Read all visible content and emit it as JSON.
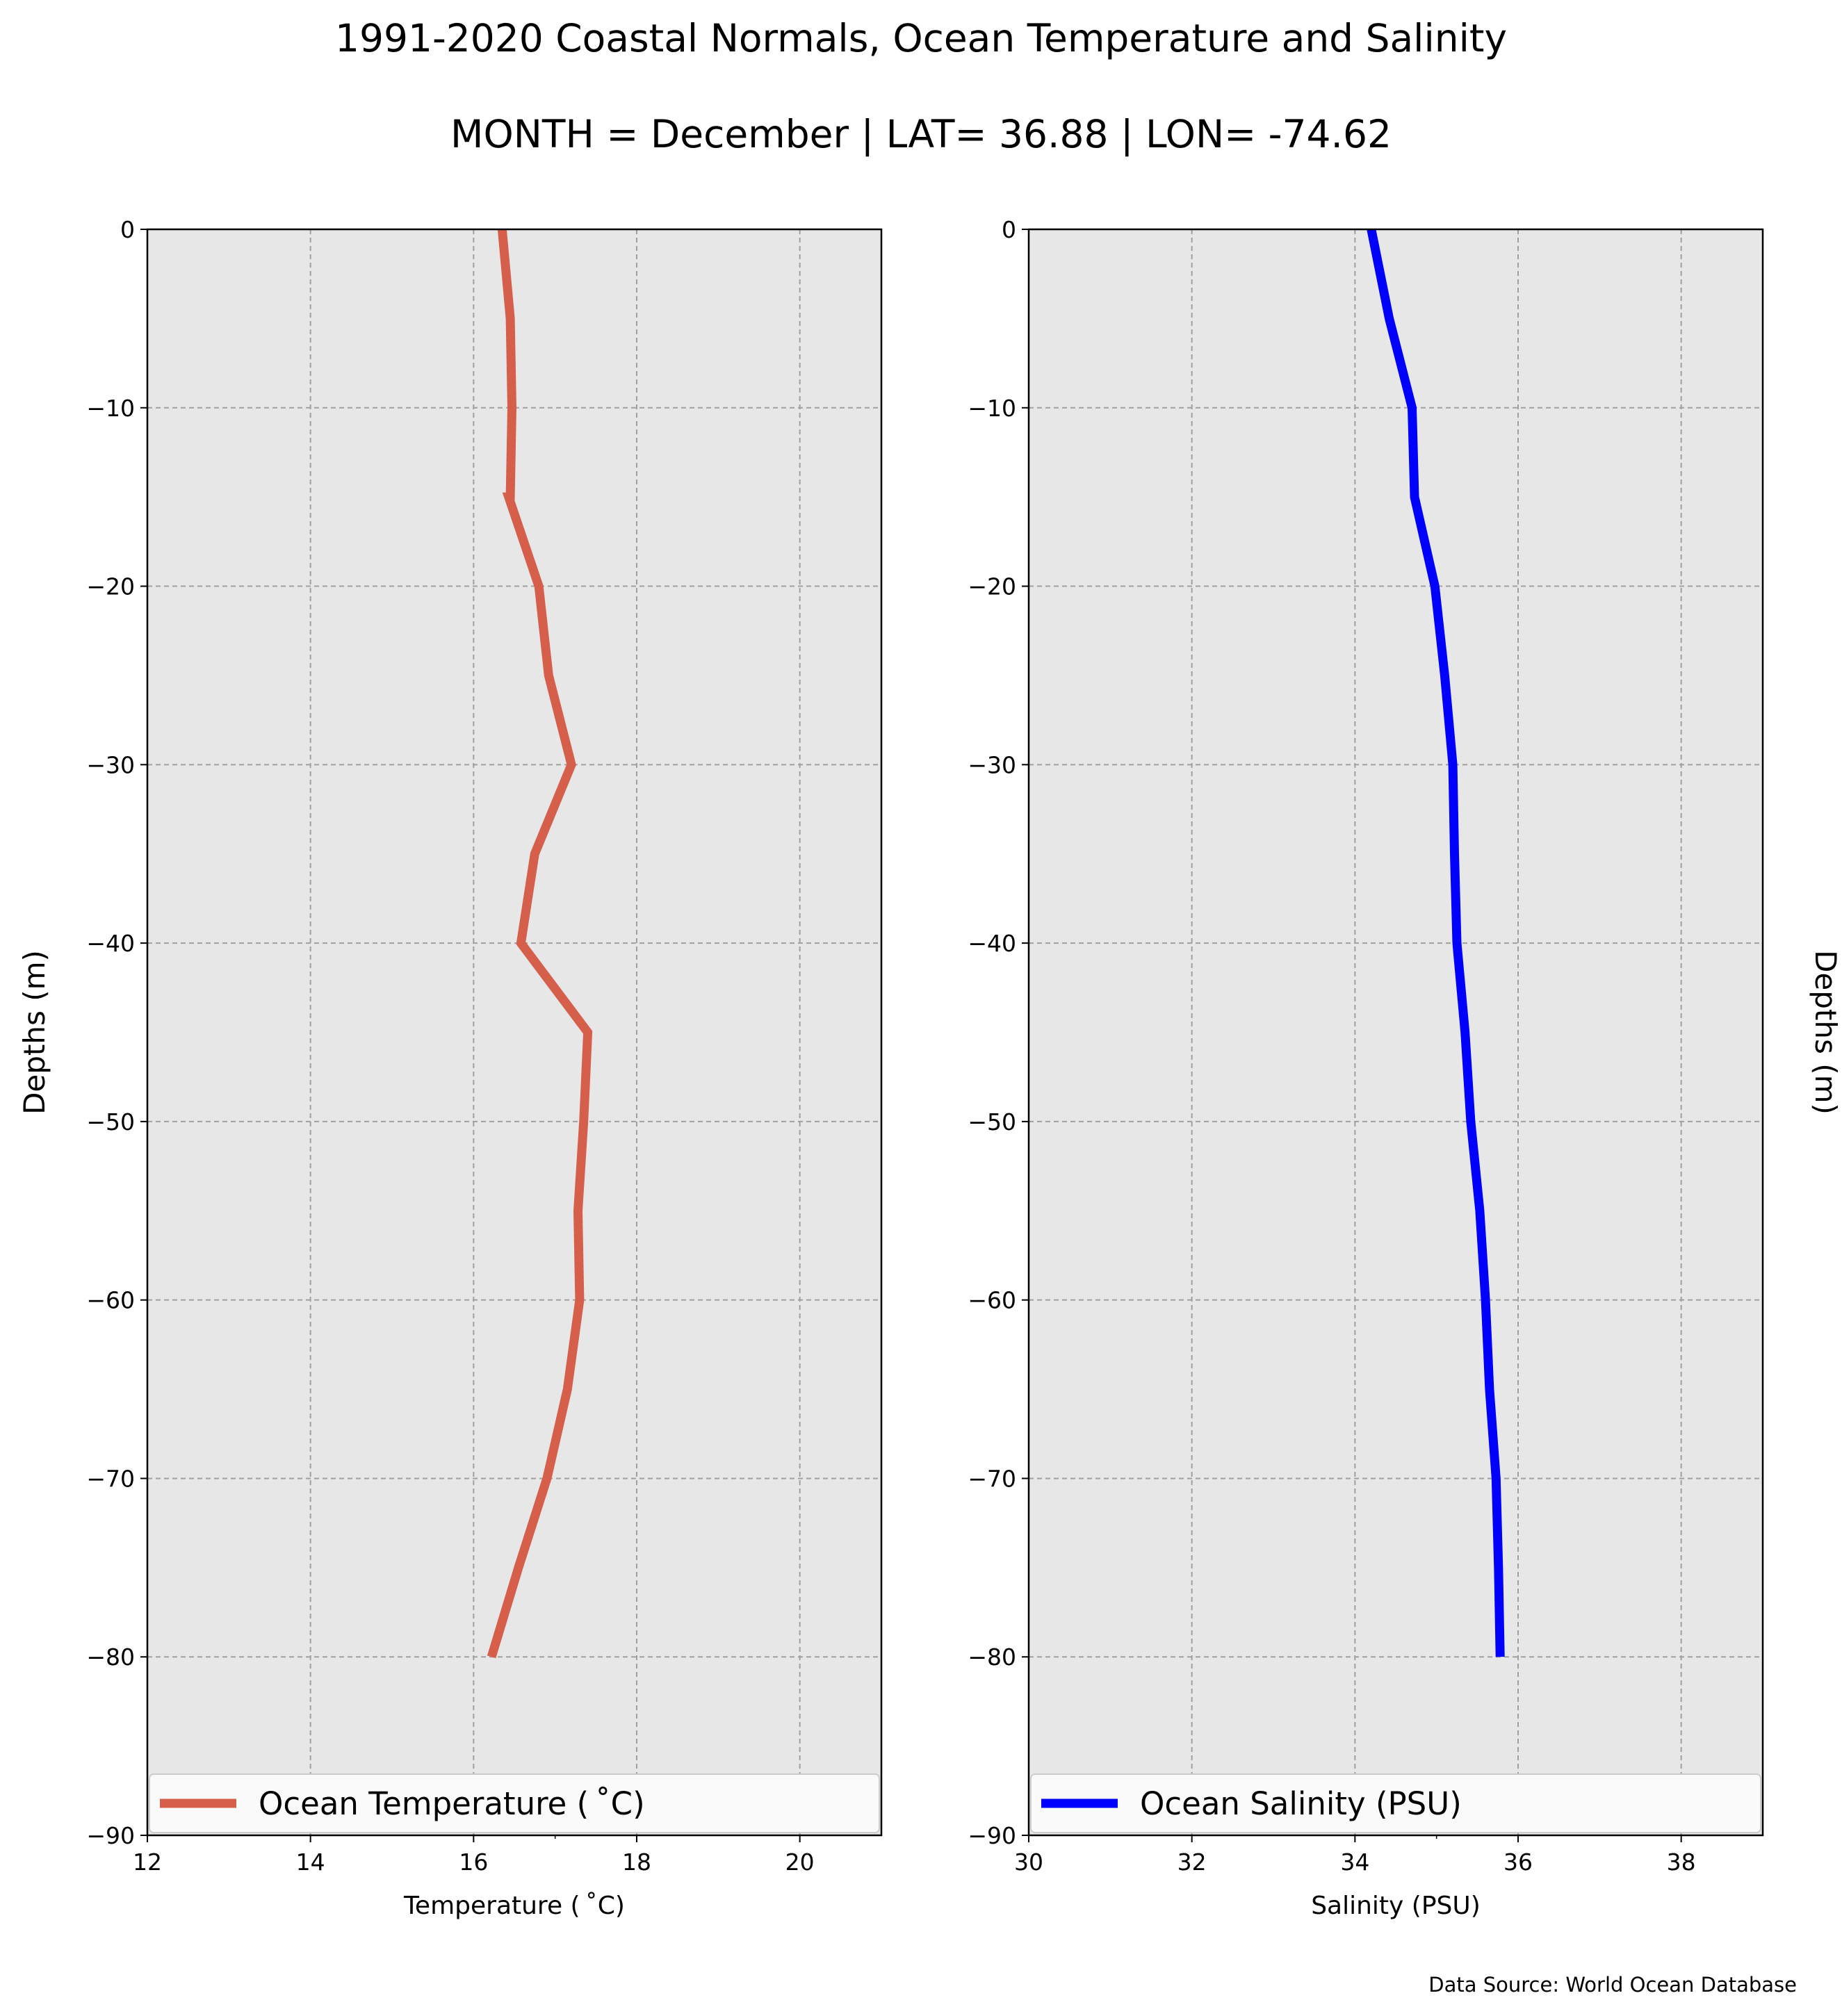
{
  "figure": {
    "title": "1991-2020 Coastal Normals, Ocean Temperature and Salinity",
    "subtitle": "MONTH = December | LAT= 36.88 | LON= -74.62",
    "source": "Data Source: World Ocean Database",
    "background": "#e7e7e7"
  },
  "chart_data": [
    {
      "type": "line",
      "xlabel": "Temperature ($^\\circ$C)",
      "xlabel_display": "Temperature ( ˚C)",
      "ylabel": "Depths (m)",
      "ylabel_side": "left",
      "xlim": [
        12,
        21
      ],
      "ylim": [
        -90,
        0
      ],
      "xticks": [
        12,
        14,
        16,
        18,
        20
      ],
      "yticks": [
        0,
        -10,
        -20,
        -30,
        -40,
        -50,
        -60,
        -70,
        -80,
        -90
      ],
      "grid": true,
      "legend_placement": "bottom",
      "series": [
        {
          "name": "Ocean Temperature ( ˚C)",
          "color": "#d65f4c",
          "x": [
            16.35,
            16.45,
            16.47,
            16.45,
            16.43,
            16.8,
            16.92,
            17.2,
            16.75,
            16.58,
            17.4,
            17.35,
            17.28,
            17.3,
            17.15,
            16.9,
            16.55,
            16.22
          ],
          "y": [
            0,
            -5,
            -10,
            -15,
            -15,
            -20,
            -25,
            -30,
            -35,
            -40,
            -45,
            -50,
            -55,
            -60,
            -65,
            -70,
            -75,
            -80
          ]
        }
      ]
    },
    {
      "type": "line",
      "xlabel": "Salinity (PSU)",
      "ylabel": "Depths (m)",
      "ylabel_side": "right",
      "xlim": [
        30,
        39
      ],
      "ylim": [
        -90,
        0
      ],
      "xticks": [
        30,
        32,
        34,
        36,
        38
      ],
      "yticks": [
        0,
        -10,
        -20,
        -30,
        -40,
        -50,
        -60,
        -70,
        -80,
        -90
      ],
      "grid": true,
      "legend_placement": "bottom",
      "series": [
        {
          "name": "Ocean Salinity (PSU)",
          "color": "#0000ff",
          "x": [
            34.2,
            34.42,
            34.7,
            34.73,
            34.98,
            35.1,
            35.2,
            35.22,
            35.25,
            35.35,
            35.42,
            35.53,
            35.6,
            35.65,
            35.73,
            35.76,
            35.78
          ],
          "y": [
            0,
            -5,
            -10,
            -15,
            -20,
            -25,
            -30,
            -35,
            -40,
            -45,
            -50,
            -55,
            -60,
            -65,
            -70,
            -75,
            -80
          ]
        }
      ]
    }
  ]
}
